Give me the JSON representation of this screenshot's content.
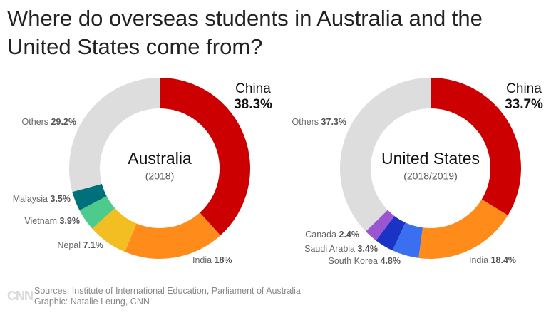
{
  "title": "Where do overseas students in Australia and the United States come from?",
  "chart_data": [
    {
      "type": "pie",
      "title": "Australia",
      "subtitle": "(2018)",
      "categories": [
        "China",
        "India",
        "Nepal",
        "Vietnam",
        "Malaysia",
        "Others"
      ],
      "values": [
        38.3,
        18,
        7.1,
        3.9,
        3.5,
        29.2
      ],
      "value_labels": [
        "38.3%",
        "18%",
        "7.1%",
        "3.9%",
        "3.5%",
        "29.2%"
      ],
      "colors": [
        "#cc0000",
        "#ff8c1a",
        "#f2be22",
        "#4ccb8c",
        "#00707a",
        "#dddddd"
      ]
    },
    {
      "type": "pie",
      "title": "United States",
      "subtitle": "(2018/2019)",
      "categories": [
        "China",
        "India",
        "South Korea",
        "Saudi Arabia",
        "Canada",
        "Others"
      ],
      "values": [
        33.7,
        18.4,
        4.8,
        3.4,
        2.4,
        37.3
      ],
      "value_labels": [
        "33.7%",
        "18.4%",
        "4.8%",
        "3.4%",
        "2.4%",
        "37.3%"
      ],
      "colors": [
        "#cc0000",
        "#ff8c1a",
        "#3a70f0",
        "#1a33c4",
        "#9a55d0",
        "#dddddd"
      ]
    }
  ],
  "sources": "Sources: Institute of International Education, Parliament of Australia",
  "credit": "Graphic: Natalie Leung, CNN",
  "logo": "CNN"
}
